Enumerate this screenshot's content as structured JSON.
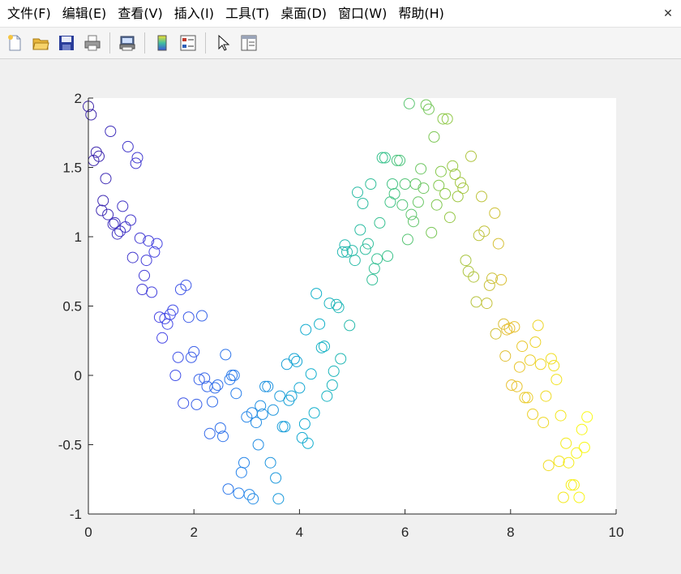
{
  "menubar": {
    "items": [
      {
        "label": "文件(F)"
      },
      {
        "label": "编辑(E)"
      },
      {
        "label": "查看(V)"
      },
      {
        "label": "插入(I)"
      },
      {
        "label": "工具(T)"
      },
      {
        "label": "桌面(D)"
      },
      {
        "label": "窗口(W)"
      },
      {
        "label": "帮助(H)"
      }
    ],
    "close_glyph": "✕"
  },
  "toolbar": {
    "icons": [
      "new-figure-icon",
      "open-file-icon",
      "save-icon",
      "print-icon",
      "print-preview-icon",
      "colorbar-icon",
      "legend-icon",
      "pointer-icon",
      "property-editor-icon"
    ]
  },
  "chart_data": {
    "type": "scatter",
    "marker": "open-circle",
    "colormap": "parula",
    "title": "",
    "xlabel": "",
    "ylabel": "",
    "xlim": [
      0,
      10
    ],
    "ylim": [
      -1,
      2
    ],
    "xticks": [
      0,
      2,
      4,
      6,
      8,
      10
    ],
    "yticks": [
      -1,
      -0.5,
      0,
      0.5,
      1,
      1.5,
      2
    ],
    "points": [
      [
        0.0,
        1.94
      ],
      [
        0.05,
        1.88
      ],
      [
        0.1,
        1.55
      ],
      [
        0.15,
        1.61
      ],
      [
        0.2,
        1.58
      ],
      [
        0.25,
        1.19
      ],
      [
        0.28,
        1.26
      ],
      [
        0.33,
        1.42
      ],
      [
        0.37,
        1.16
      ],
      [
        0.42,
        1.76
      ],
      [
        0.47,
        1.09
      ],
      [
        0.5,
        1.1
      ],
      [
        0.55,
        1.02
      ],
      [
        0.6,
        1.04
      ],
      [
        0.65,
        1.22
      ],
      [
        0.7,
        1.07
      ],
      [
        0.75,
        1.65
      ],
      [
        0.8,
        1.12
      ],
      [
        0.84,
        0.85
      ],
      [
        0.9,
        1.53
      ],
      [
        0.93,
        1.57
      ],
      [
        0.98,
        0.99
      ],
      [
        1.02,
        0.62
      ],
      [
        1.06,
        0.72
      ],
      [
        1.1,
        0.83
      ],
      [
        1.14,
        0.97
      ],
      [
        1.2,
        0.6
      ],
      [
        1.25,
        0.89
      ],
      [
        1.3,
        0.95
      ],
      [
        1.35,
        0.42
      ],
      [
        1.4,
        0.27
      ],
      [
        1.45,
        0.41
      ],
      [
        1.5,
        0.37
      ],
      [
        1.55,
        0.44
      ],
      [
        1.6,
        0.47
      ],
      [
        1.65,
        0.0
      ],
      [
        1.7,
        0.13
      ],
      [
        1.75,
        0.62
      ],
      [
        1.8,
        -0.2
      ],
      [
        1.85,
        0.65
      ],
      [
        1.9,
        0.42
      ],
      [
        1.95,
        0.13
      ],
      [
        2.0,
        0.17
      ],
      [
        2.05,
        -0.21
      ],
      [
        2.1,
        -0.03
      ],
      [
        2.15,
        0.43
      ],
      [
        2.2,
        -0.02
      ],
      [
        2.25,
        -0.08
      ],
      [
        2.3,
        -0.42
      ],
      [
        2.35,
        -0.19
      ],
      [
        2.4,
        -0.09
      ],
      [
        2.45,
        -0.07
      ],
      [
        2.5,
        -0.38
      ],
      [
        2.55,
        -0.44
      ],
      [
        2.6,
        0.15
      ],
      [
        2.65,
        -0.82
      ],
      [
        2.68,
        -0.03
      ],
      [
        2.72,
        0.0
      ],
      [
        2.76,
        0.0
      ],
      [
        2.8,
        -0.13
      ],
      [
        2.85,
        -0.85
      ],
      [
        2.9,
        -0.7
      ],
      [
        2.95,
        -0.63
      ],
      [
        3.0,
        -0.3
      ],
      [
        3.05,
        -0.86
      ],
      [
        3.1,
        -0.27
      ],
      [
        3.12,
        -0.89
      ],
      [
        3.18,
        -0.34
      ],
      [
        3.22,
        -0.5
      ],
      [
        3.26,
        -0.22
      ],
      [
        3.3,
        -0.28
      ],
      [
        3.35,
        -0.08
      ],
      [
        3.4,
        -0.08
      ],
      [
        3.45,
        -0.63
      ],
      [
        3.5,
        -0.25
      ],
      [
        3.55,
        -0.74
      ],
      [
        3.6,
        -0.89
      ],
      [
        3.63,
        -0.15
      ],
      [
        3.68,
        -0.37
      ],
      [
        3.72,
        -0.37
      ],
      [
        3.76,
        0.08
      ],
      [
        3.8,
        -0.18
      ],
      [
        3.85,
        -0.15
      ],
      [
        3.9,
        0.12
      ],
      [
        3.95,
        0.1
      ],
      [
        4.0,
        -0.09
      ],
      [
        4.05,
        -0.45
      ],
      [
        4.1,
        -0.35
      ],
      [
        4.12,
        0.33
      ],
      [
        4.16,
        -0.49
      ],
      [
        4.22,
        0.01
      ],
      [
        4.28,
        -0.27
      ],
      [
        4.32,
        0.59
      ],
      [
        4.38,
        0.37
      ],
      [
        4.42,
        0.2
      ],
      [
        4.47,
        0.21
      ],
      [
        4.52,
        -0.15
      ],
      [
        4.57,
        0.52
      ],
      [
        4.62,
        -0.07
      ],
      [
        4.65,
        0.03
      ],
      [
        4.7,
        0.51
      ],
      [
        4.74,
        0.49
      ],
      [
        4.78,
        0.12
      ],
      [
        4.82,
        0.89
      ],
      [
        4.86,
        0.94
      ],
      [
        4.9,
        0.89
      ],
      [
        4.95,
        0.36
      ],
      [
        5.0,
        0.9
      ],
      [
        5.05,
        0.83
      ],
      [
        5.1,
        1.32
      ],
      [
        5.15,
        1.05
      ],
      [
        5.2,
        1.24
      ],
      [
        5.25,
        0.91
      ],
      [
        5.3,
        0.95
      ],
      [
        5.35,
        1.38
      ],
      [
        5.38,
        0.69
      ],
      [
        5.42,
        0.77
      ],
      [
        5.47,
        0.84
      ],
      [
        5.52,
        1.1
      ],
      [
        5.57,
        1.57
      ],
      [
        5.62,
        1.57
      ],
      [
        5.67,
        0.86
      ],
      [
        5.72,
        1.25
      ],
      [
        5.76,
        1.38
      ],
      [
        5.8,
        1.31
      ],
      [
        5.85,
        1.55
      ],
      [
        5.9,
        1.55
      ],
      [
        5.95,
        1.23
      ],
      [
        6.0,
        1.38
      ],
      [
        6.05,
        0.98
      ],
      [
        6.08,
        1.96
      ],
      [
        6.12,
        1.16
      ],
      [
        6.16,
        1.11
      ],
      [
        6.2,
        1.38
      ],
      [
        6.25,
        1.25
      ],
      [
        6.3,
        1.49
      ],
      [
        6.35,
        1.35
      ],
      [
        6.4,
        1.95
      ],
      [
        6.45,
        1.92
      ],
      [
        6.5,
        1.03
      ],
      [
        6.55,
        1.72
      ],
      [
        6.6,
        1.23
      ],
      [
        6.64,
        1.37
      ],
      [
        6.68,
        1.47
      ],
      [
        6.72,
        1.85
      ],
      [
        6.76,
        1.31
      ],
      [
        6.8,
        1.85
      ],
      [
        6.85,
        1.14
      ],
      [
        6.9,
        1.51
      ],
      [
        6.95,
        1.45
      ],
      [
        7.0,
        1.29
      ],
      [
        7.05,
        1.39
      ],
      [
        7.1,
        1.35
      ],
      [
        7.15,
        0.83
      ],
      [
        7.2,
        0.75
      ],
      [
        7.25,
        1.58
      ],
      [
        7.3,
        0.71
      ],
      [
        7.35,
        0.53
      ],
      [
        7.4,
        1.01
      ],
      [
        7.45,
        1.29
      ],
      [
        7.5,
        1.04
      ],
      [
        7.55,
        0.52
      ],
      [
        7.6,
        0.65
      ],
      [
        7.65,
        0.7
      ],
      [
        7.7,
        1.17
      ],
      [
        7.72,
        0.3
      ],
      [
        7.77,
        0.95
      ],
      [
        7.82,
        0.69
      ],
      [
        7.87,
        0.37
      ],
      [
        7.9,
        0.14
      ],
      [
        7.93,
        0.33
      ],
      [
        7.98,
        0.34
      ],
      [
        8.02,
        -0.07
      ],
      [
        8.07,
        0.35
      ],
      [
        8.12,
        -0.08
      ],
      [
        8.17,
        0.06
      ],
      [
        8.22,
        0.21
      ],
      [
        8.27,
        -0.16
      ],
      [
        8.32,
        -0.16
      ],
      [
        8.37,
        0.11
      ],
      [
        8.42,
        -0.28
      ],
      [
        8.47,
        0.24
      ],
      [
        8.52,
        0.36
      ],
      [
        8.57,
        0.08
      ],
      [
        8.62,
        -0.34
      ],
      [
        8.67,
        -0.15
      ],
      [
        8.72,
        -0.65
      ],
      [
        8.77,
        0.12
      ],
      [
        8.82,
        0.07
      ],
      [
        8.87,
        -0.03
      ],
      [
        8.92,
        -0.62
      ],
      [
        8.95,
        -0.29
      ],
      [
        9.0,
        -0.88
      ],
      [
        9.05,
        -0.49
      ],
      [
        9.1,
        -0.63
      ],
      [
        9.15,
        -0.79
      ],
      [
        9.2,
        -0.79
      ],
      [
        9.25,
        -0.56
      ],
      [
        9.3,
        -0.88
      ],
      [
        9.35,
        -0.39
      ],
      [
        9.4,
        -0.52
      ],
      [
        9.45,
        -0.3
      ]
    ]
  }
}
